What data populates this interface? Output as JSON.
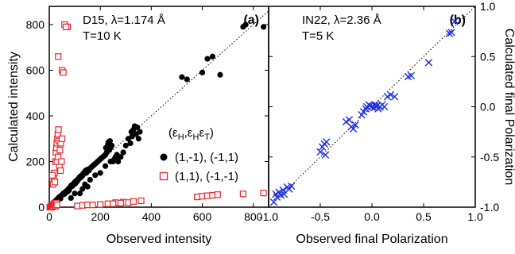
{
  "chart_data": [
    {
      "type": "scatter",
      "panel_label": "(a)",
      "annotation_lines": [
        "D15, λ=1.174 Å",
        "T=10 K"
      ],
      "xlabel": "Observed intensity",
      "ylabel": "Calculated intensity",
      "xlim": [
        0,
        860
      ],
      "ylim": [
        0,
        880
      ],
      "xticks": [
        0,
        200,
        400,
        600,
        800
      ],
      "yticks": [
        0,
        200,
        400,
        600,
        800
      ],
      "reference_line": "y = x (dotted)",
      "legend": {
        "title": "(εH,εHεT)",
        "position": "center-right",
        "entries": [
          "(1,-1), (-1,1)",
          "(1,1), (-1,-1)"
        ]
      },
      "series": [
        {
          "name": "(1,-1), (-1,1)",
          "marker": "filled-circle",
          "color": "#000000",
          "points": [
            [
              5,
              5
            ],
            [
              12,
              10
            ],
            [
              18,
              20
            ],
            [
              22,
              25
            ],
            [
              28,
              32
            ],
            [
              32,
              28
            ],
            [
              35,
              40
            ],
            [
              40,
              45
            ],
            [
              44,
              38
            ],
            [
              48,
              52
            ],
            [
              52,
              55
            ],
            [
              55,
              60
            ],
            [
              60,
              58
            ],
            [
              62,
              65
            ],
            [
              66,
              70
            ],
            [
              70,
              72
            ],
            [
              72,
              68
            ],
            [
              75,
              80
            ],
            [
              78,
              75
            ],
            [
              80,
              85
            ],
            [
              84,
              90
            ],
            [
              86,
              95
            ],
            [
              90,
              92
            ],
            [
              92,
              100
            ],
            [
              95,
              98
            ],
            [
              98,
              105
            ],
            [
              100,
              110
            ],
            [
              102,
              104
            ],
            [
              105,
              115
            ],
            [
              108,
              112
            ],
            [
              110,
              120
            ],
            [
              112,
              118
            ],
            [
              115,
              125
            ],
            [
              118,
              130
            ],
            [
              120,
              128
            ],
            [
              122,
              135
            ],
            [
              125,
              132
            ],
            [
              128,
              140
            ],
            [
              130,
              138
            ],
            [
              132,
              145
            ],
            [
              135,
              150
            ],
            [
              138,
              148
            ],
            [
              140,
              155
            ],
            [
              142,
              160
            ],
            [
              145,
              150
            ],
            [
              150,
              165
            ],
            [
              155,
              160
            ],
            [
              160,
              170
            ],
            [
              165,
              175
            ],
            [
              170,
              180
            ],
            [
              175,
              185
            ],
            [
              180,
              190
            ],
            [
              185,
              195
            ],
            [
              190,
              200
            ],
            [
              195,
              205
            ],
            [
              200,
              210
            ],
            [
              205,
              215
            ],
            [
              210,
              220
            ],
            [
              215,
              225
            ],
            [
              220,
              230
            ],
            [
              222,
              260
            ],
            [
              225,
              240
            ],
            [
              228,
              250
            ],
            [
              230,
              275
            ],
            [
              232,
              285
            ],
            [
              235,
              250
            ],
            [
              238,
              290
            ],
            [
              240,
              260
            ],
            [
              245,
              270
            ],
            [
              250,
              200
            ],
            [
              255,
              210
            ],
            [
              260,
              220
            ],
            [
              265,
              230
            ],
            [
              270,
              200
            ],
            [
              280,
              220
            ],
            [
              290,
              240
            ],
            [
              300,
              270
            ],
            [
              310,
              300
            ],
            [
              318,
              280
            ],
            [
              322,
              330
            ],
            [
              325,
              310
            ],
            [
              330,
              340
            ],
            [
              335,
              355
            ],
            [
              340,
              320
            ],
            [
              345,
              350
            ],
            [
              350,
              300
            ],
            [
              355,
              330
            ],
            [
              120,
              60
            ],
            [
              140,
              100
            ],
            [
              160,
              120
            ],
            [
              180,
              140
            ],
            [
              200,
              150
            ],
            [
              220,
              180
            ],
            [
              240,
              200
            ],
            [
              150,
              90
            ],
            [
              100,
              60
            ],
            [
              130,
              80
            ],
            [
              85,
              40
            ],
            [
              520,
              570
            ],
            [
              540,
              560
            ],
            [
              600,
              590
            ],
            [
              620,
              650
            ],
            [
              640,
              660
            ],
            [
              670,
              580
            ],
            [
              760,
              790
            ],
            [
              770,
              800
            ],
            [
              840,
              790
            ]
          ]
        },
        {
          "name": "(1,1), (-1,-1)",
          "marker": "open-square",
          "color": "#e8262b",
          "points": [
            [
              2,
              0
            ],
            [
              5,
              2
            ],
            [
              8,
              5
            ],
            [
              10,
              0
            ],
            [
              12,
              6
            ],
            [
              14,
              3
            ],
            [
              16,
              10
            ],
            [
              18,
              15
            ],
            [
              20,
              8
            ],
            [
              22,
              12
            ],
            [
              25,
              5
            ],
            [
              28,
              18
            ],
            [
              30,
              10
            ],
            [
              15,
              100
            ],
            [
              18,
              130
            ],
            [
              20,
              150
            ],
            [
              22,
              110
            ],
            [
              24,
              200
            ],
            [
              26,
              240
            ],
            [
              28,
              260
            ],
            [
              30,
              280
            ],
            [
              32,
              300
            ],
            [
              34,
              320
            ],
            [
              36,
              340
            ],
            [
              38,
              290
            ],
            [
              40,
              180
            ],
            [
              30,
              200
            ],
            [
              35,
              220
            ],
            [
              12,
              140
            ],
            [
              45,
              280
            ],
            [
              50,
              300
            ],
            [
              42,
              250
            ],
            [
              48,
              200
            ],
            [
              44,
              160
            ],
            [
              60,
              800
            ],
            [
              72,
              790
            ],
            [
              66,
              790
            ],
            [
              35,
              660
            ],
            [
              50,
              600
            ],
            [
              55,
              590
            ],
            [
              110,
              5
            ],
            [
              130,
              8
            ],
            [
              150,
              10
            ],
            [
              170,
              10
            ],
            [
              200,
              12
            ],
            [
              230,
              15
            ],
            [
              260,
              20
            ],
            [
              290,
              22
            ],
            [
              310,
              20
            ],
            [
              330,
              25
            ],
            [
              360,
              28
            ],
            [
              250,
              15
            ],
            [
              280,
              18
            ],
            [
              580,
              45
            ],
            [
              600,
              48
            ],
            [
              620,
              50
            ],
            [
              640,
              52
            ],
            [
              660,
              55
            ],
            [
              760,
              58
            ],
            [
              840,
              62
            ]
          ]
        }
      ]
    },
    {
      "type": "scatter",
      "panel_label": "(b)",
      "annotation_lines": [
        "IN22, λ=2.36 Å",
        "T=5 K"
      ],
      "xlabel": "Observed final Polarization",
      "ylabel": "Calculated final Polarization",
      "xlim": [
        -1.0,
        1.0
      ],
      "ylim": [
        -1.0,
        1.0
      ],
      "xticks": [
        -1.0,
        -0.5,
        0.0,
        0.5,
        1.0
      ],
      "xtick_labels": [
        "-1.0",
        "-0.5",
        "0.0",
        "0.5",
        "1.0"
      ],
      "yticks": [
        -1.0,
        -0.5,
        0.0,
        0.5,
        1.0
      ],
      "ytick_labels": [
        "-1.0",
        "-0.5",
        "0.0",
        "0.5",
        "1.0"
      ],
      "y_axis_side": "right",
      "reference_line": "y = x (dotted)",
      "series": [
        {
          "marker": "x-cross",
          "color": "#1f30e6",
          "points": [
            [
              -0.95,
              -0.95
            ],
            [
              -0.93,
              -0.87
            ],
            [
              -0.92,
              -0.9
            ],
            [
              -0.9,
              -0.85
            ],
            [
              -0.88,
              -0.88
            ],
            [
              -0.86,
              -0.83
            ],
            [
              -0.85,
              -0.87
            ],
            [
              -0.82,
              -0.8
            ],
            [
              -0.8,
              -0.82
            ],
            [
              -0.78,
              -0.79
            ],
            [
              -0.5,
              -0.45
            ],
            [
              -0.48,
              -0.4
            ],
            [
              -0.46,
              -0.37
            ],
            [
              -0.45,
              -0.48
            ],
            [
              -0.44,
              -0.35
            ],
            [
              -0.25,
              -0.15
            ],
            [
              -0.22,
              -0.13
            ],
            [
              -0.2,
              -0.2
            ],
            [
              -0.18,
              -0.22
            ],
            [
              -0.16,
              -0.18
            ],
            [
              -0.1,
              -0.08
            ],
            [
              -0.08,
              -0.05
            ],
            [
              -0.06,
              -0.02
            ],
            [
              -0.05,
              0.0
            ],
            [
              -0.03,
              0.02
            ],
            [
              -0.02,
              0.01
            ],
            [
              0.0,
              0.0
            ],
            [
              0.02,
              -0.01
            ],
            [
              0.03,
              0.02
            ],
            [
              0.04,
              0.0
            ],
            [
              0.05,
              0.01
            ],
            [
              0.06,
              -0.02
            ],
            [
              0.08,
              0.0
            ],
            [
              0.1,
              0.02
            ],
            [
              0.12,
              0.0
            ],
            [
              0.15,
              0.1
            ],
            [
              0.18,
              0.12
            ],
            [
              0.22,
              0.1
            ],
            [
              0.35,
              0.3
            ],
            [
              0.38,
              0.31
            ],
            [
              0.55,
              0.44
            ],
            [
              0.75,
              0.73
            ],
            [
              0.77,
              0.74
            ],
            [
              0.8,
              0.85
            ]
          ]
        }
      ]
    }
  ]
}
